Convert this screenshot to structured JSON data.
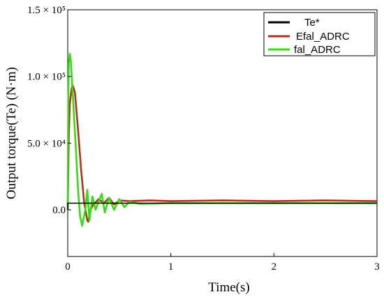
{
  "chart_data": {
    "type": "line",
    "xlabel": "Time(s)",
    "ylabel": "Output torque(Te) (N·m)",
    "xlim": [
      0,
      3
    ],
    "ylim": [
      -35000,
      150000
    ],
    "x_ticks": [
      0,
      1,
      2,
      3
    ],
    "x_tick_labels": [
      "0",
      "1",
      "2",
      "3"
    ],
    "y_ticks": [
      0,
      50000,
      100000,
      150000
    ],
    "y_tick_labels": [
      "0.0",
      "5.0 × 10⁴",
      "1.0 × 10⁵",
      "1.5 × 10⁵"
    ],
    "legend_position": "top-right",
    "grid": false,
    "series": [
      {
        "name": "Te*",
        "color": "#000000",
        "x": [
          0.0,
          0.0,
          0.02,
          0.25,
          0.5,
          1.0,
          2.0,
          3.0
        ],
        "y": [
          0,
          5000,
          5000,
          5000,
          5000,
          5000,
          5000,
          5000
        ]
      },
      {
        "name": "Efal_ADRC",
        "color": "#b03020",
        "x": [
          0.0,
          0.01,
          0.02,
          0.04,
          0.05,
          0.07,
          0.1,
          0.13,
          0.16,
          0.19,
          0.2,
          0.22,
          0.25,
          0.3,
          0.35,
          0.4,
          0.45,
          0.5,
          0.6,
          0.8,
          1.0,
          1.5,
          2.0,
          2.5,
          3.0
        ],
        "y": [
          0,
          55000,
          80000,
          92000,
          93000,
          88000,
          60000,
          30000,
          5000,
          -8000,
          -9000,
          0,
          4000,
          8000,
          5000,
          9000,
          4000,
          7000,
          6500,
          7000,
          6500,
          7000,
          6500,
          7000,
          6500
        ]
      },
      {
        "name": "fal_ADRC",
        "color": "#33dd11",
        "x": [
          0.0,
          0.005,
          0.01,
          0.02,
          0.03,
          0.05,
          0.08,
          0.1,
          0.12,
          0.14,
          0.17,
          0.19,
          0.21,
          0.24,
          0.27,
          0.3,
          0.33,
          0.36,
          0.4,
          0.45,
          0.5,
          0.55,
          0.6,
          0.7,
          1.0,
          1.5,
          2.0,
          2.5,
          3.0
        ],
        "y": [
          0,
          80000,
          110000,
          117000,
          112000,
          85000,
          45000,
          15000,
          -5000,
          -12000,
          0,
          15000,
          -8000,
          10000,
          0,
          6000,
          12000,
          -2000,
          9000,
          0,
          8000,
          2000,
          6000,
          4500,
          5000,
          5000,
          5000,
          5000,
          5000
        ]
      }
    ]
  }
}
